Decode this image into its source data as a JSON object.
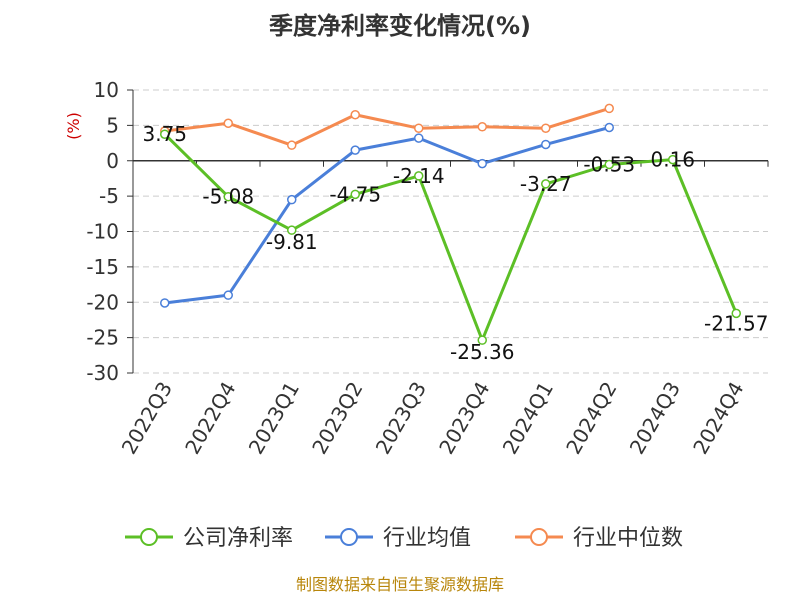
{
  "chart_data": {
    "type": "line",
    "title": "季度净利率变化情况(%)",
    "ylabel": "(%)",
    "categories": [
      "2022Q3",
      "2022Q4",
      "2023Q1",
      "2023Q2",
      "2023Q3",
      "2023Q4",
      "2024Q1",
      "2024Q2",
      "2024Q3",
      "2024Q4"
    ],
    "ylim": [
      -30,
      10
    ],
    "yticks": [
      10,
      5,
      0,
      -5,
      -10,
      -15,
      -20,
      -25,
      -30
    ],
    "grid": true,
    "legend": "bottom",
    "series": [
      {
        "name": "公司净利率",
        "color": "#5cbf26",
        "values": [
          3.75,
          -5.08,
          -9.81,
          -4.75,
          -2.14,
          -25.36,
          -3.27,
          -0.53,
          0.16,
          -21.57
        ],
        "labels": [
          "3.75",
          "-5.08",
          "-9.81",
          "-4.75",
          "-2.14",
          "-25.36",
          "-3.27",
          "-0.53",
          "0.16",
          "-21.57"
        ]
      },
      {
        "name": "行业均值",
        "color": "#4a7fd9",
        "values": [
          -20.1,
          -19.0,
          -5.5,
          1.5,
          3.2,
          -0.4,
          2.3,
          4.7,
          null,
          null
        ]
      },
      {
        "name": "行业中位数",
        "color": "#f58a50",
        "values": [
          4.2,
          5.3,
          2.2,
          6.5,
          4.6,
          4.8,
          4.6,
          7.4,
          null,
          null
        ]
      }
    ]
  },
  "source": "制图数据来自恒生聚源数据库"
}
